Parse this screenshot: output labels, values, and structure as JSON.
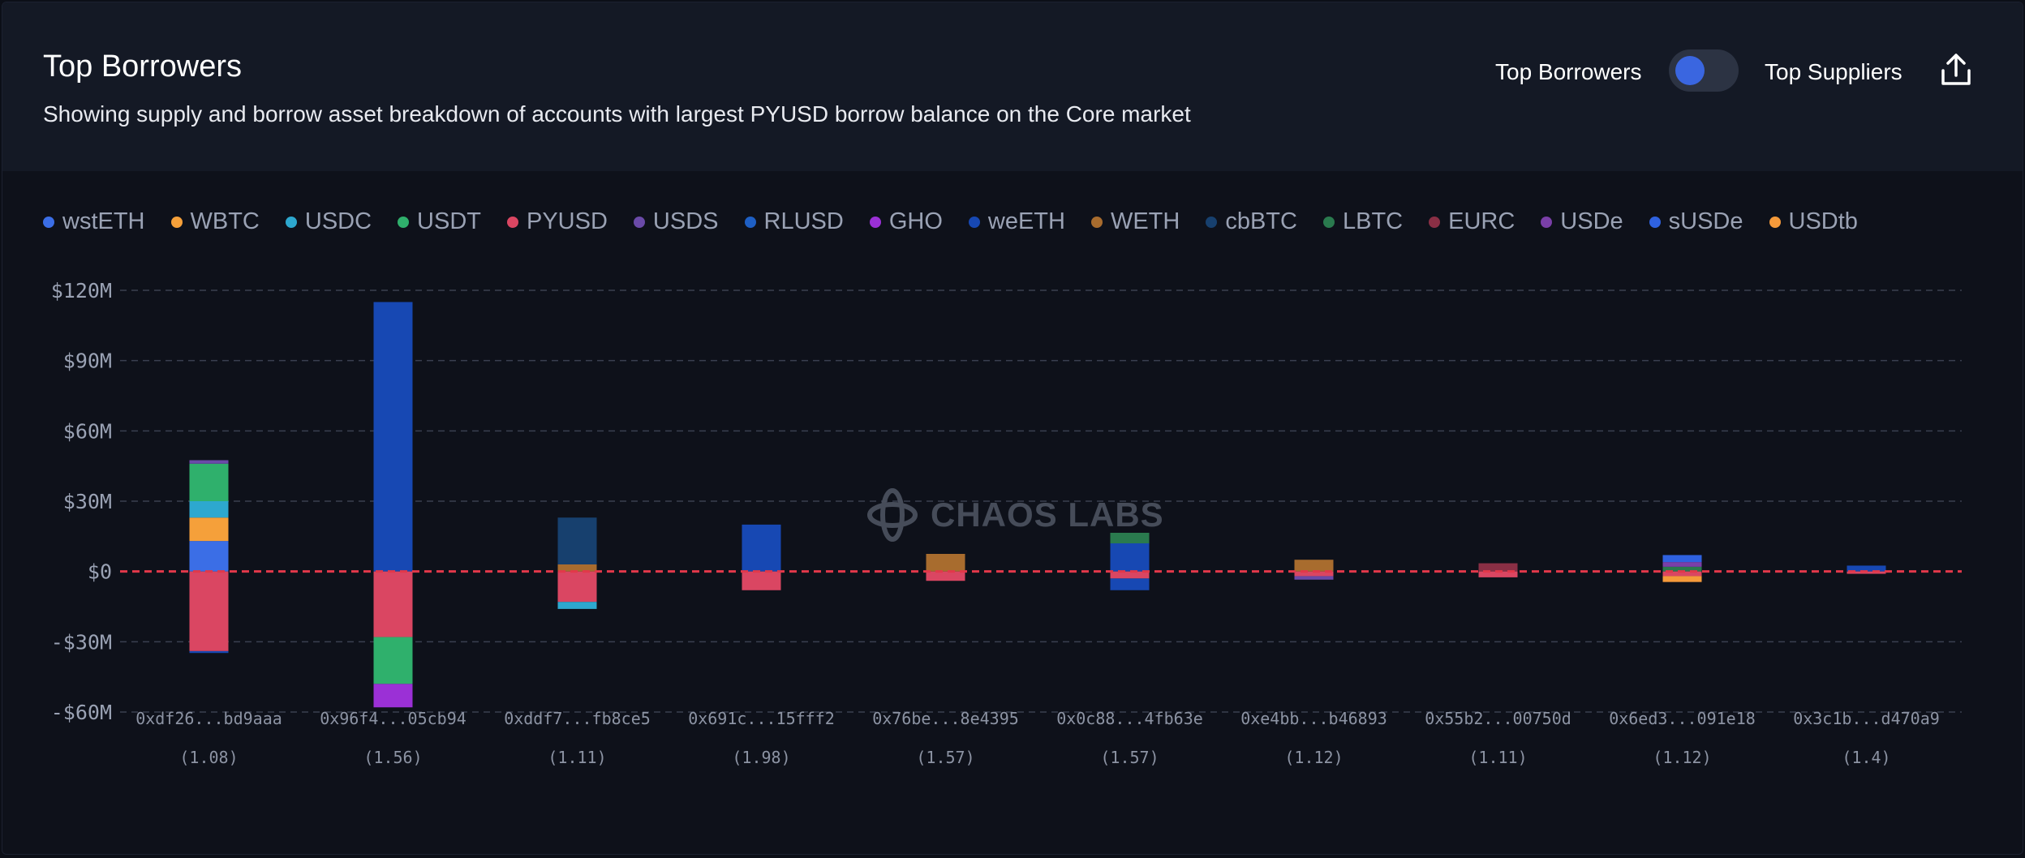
{
  "header": {
    "title": "Top Borrowers",
    "subtitle": "Showing supply and borrow asset breakdown of accounts with largest PYUSD borrow balance on the Core market",
    "toggle_left_label": "Top Borrowers",
    "toggle_right_label": "Top Suppliers",
    "export_icon": "share-upload-icon"
  },
  "watermark": {
    "text": "CHAOS LABS",
    "icon": "chaos-labs-logo-icon"
  },
  "chart_data": {
    "type": "bar",
    "stacked": true,
    "title": "Top Borrowers",
    "ylim": [
      -60,
      120
    ],
    "yticks": [
      120,
      90,
      60,
      30,
      0,
      -30,
      -60
    ],
    "ytick_labels": [
      "$120M",
      "$90M",
      "$60M",
      "$30M",
      "$0",
      "-$30M",
      "-$60M"
    ],
    "grid": true,
    "zero_line_color": "#e2384a",
    "legend": [
      {
        "name": "wstETH",
        "color": "#3b6ee6"
      },
      {
        "name": "WBTC",
        "color": "#f5a03a"
      },
      {
        "name": "USDC",
        "color": "#2da8cf"
      },
      {
        "name": "USDT",
        "color": "#2fb06c"
      },
      {
        "name": "PYUSD",
        "color": "#da4662"
      },
      {
        "name": "USDS",
        "color": "#6a4aa8"
      },
      {
        "name": "RLUSD",
        "color": "#1e5fc4"
      },
      {
        "name": "GHO",
        "color": "#9b30d6"
      },
      {
        "name": "weETH",
        "color": "#1748b3"
      },
      {
        "name": "WETH",
        "color": "#a86c2e"
      },
      {
        "name": "cbBTC",
        "color": "#17406e"
      },
      {
        "name": "LBTC",
        "color": "#2a7a4e"
      },
      {
        "name": "EURC",
        "color": "#8a2f45"
      },
      {
        "name": "USDe",
        "color": "#7a3fa8"
      },
      {
        "name": "sUSDe",
        "color": "#2f62e0"
      },
      {
        "name": "USDtb",
        "color": "#f59a3a"
      }
    ],
    "categories": [
      {
        "address": "0xdf26...bd9aaa",
        "hf": "(1.08)",
        "supply": [
          [
            "wstETH",
            13
          ],
          [
            "WBTC",
            10
          ],
          [
            "USDC",
            7
          ],
          [
            "USDT",
            16
          ],
          [
            "USDS",
            1.5
          ]
        ],
        "borrow": [
          [
            "PYUSD",
            34
          ],
          [
            "weETH",
            0.8
          ]
        ]
      },
      {
        "address": "0x96f4...05cb94",
        "hf": "(1.56)",
        "supply": [
          [
            "weETH",
            115
          ]
        ],
        "borrow": [
          [
            "PYUSD",
            28
          ],
          [
            "USDT",
            20
          ],
          [
            "GHO",
            10
          ]
        ]
      },
      {
        "address": "0xddf7...fb8ce5",
        "hf": "(1.11)",
        "supply": [
          [
            "WETH",
            3
          ],
          [
            "cbBTC",
            20
          ]
        ],
        "borrow": [
          [
            "PYUSD",
            13
          ],
          [
            "USDC",
            3
          ]
        ]
      },
      {
        "address": "0x691c...15fff2",
        "hf": "(1.98)",
        "supply": [
          [
            "weETH",
            20
          ]
        ],
        "borrow": [
          [
            "PYUSD",
            8
          ]
        ]
      },
      {
        "address": "0x76be...8e4395",
        "hf": "(1.57)",
        "supply": [
          [
            "WETH",
            7.5
          ]
        ],
        "borrow": [
          [
            "PYUSD",
            4
          ]
        ]
      },
      {
        "address": "0x0c88...4fb63e",
        "hf": "(1.57)",
        "supply": [
          [
            "weETH",
            12
          ],
          [
            "LBTC",
            4.5
          ]
        ],
        "borrow": [
          [
            "PYUSD",
            3
          ],
          [
            "weETH",
            5
          ]
        ]
      },
      {
        "address": "0xe4bb...b46893",
        "hf": "(1.12)",
        "supply": [
          [
            "WETH",
            5
          ]
        ],
        "borrow": [
          [
            "PYUSD",
            2
          ],
          [
            "USDS",
            1.5
          ]
        ]
      },
      {
        "address": "0x55b2...00750d",
        "hf": "(1.11)",
        "supply": [
          [
            "EURC",
            3.5
          ]
        ],
        "borrow": [
          [
            "PYUSD",
            2.5
          ]
        ]
      },
      {
        "address": "0x6ed3...091e18",
        "hf": "(1.12)",
        "supply": [
          [
            "LBTC",
            2
          ],
          [
            "USDe",
            2
          ],
          [
            "sUSDe",
            3
          ]
        ],
        "borrow": [
          [
            "PYUSD",
            2
          ],
          [
            "USDtb",
            2.5
          ]
        ]
      },
      {
        "address": "0x3c1b...d470a9",
        "hf": "(1.4)",
        "supply": [
          [
            "weETH",
            2.5
          ]
        ],
        "borrow": [
          [
            "PYUSD",
            1
          ]
        ]
      }
    ]
  }
}
